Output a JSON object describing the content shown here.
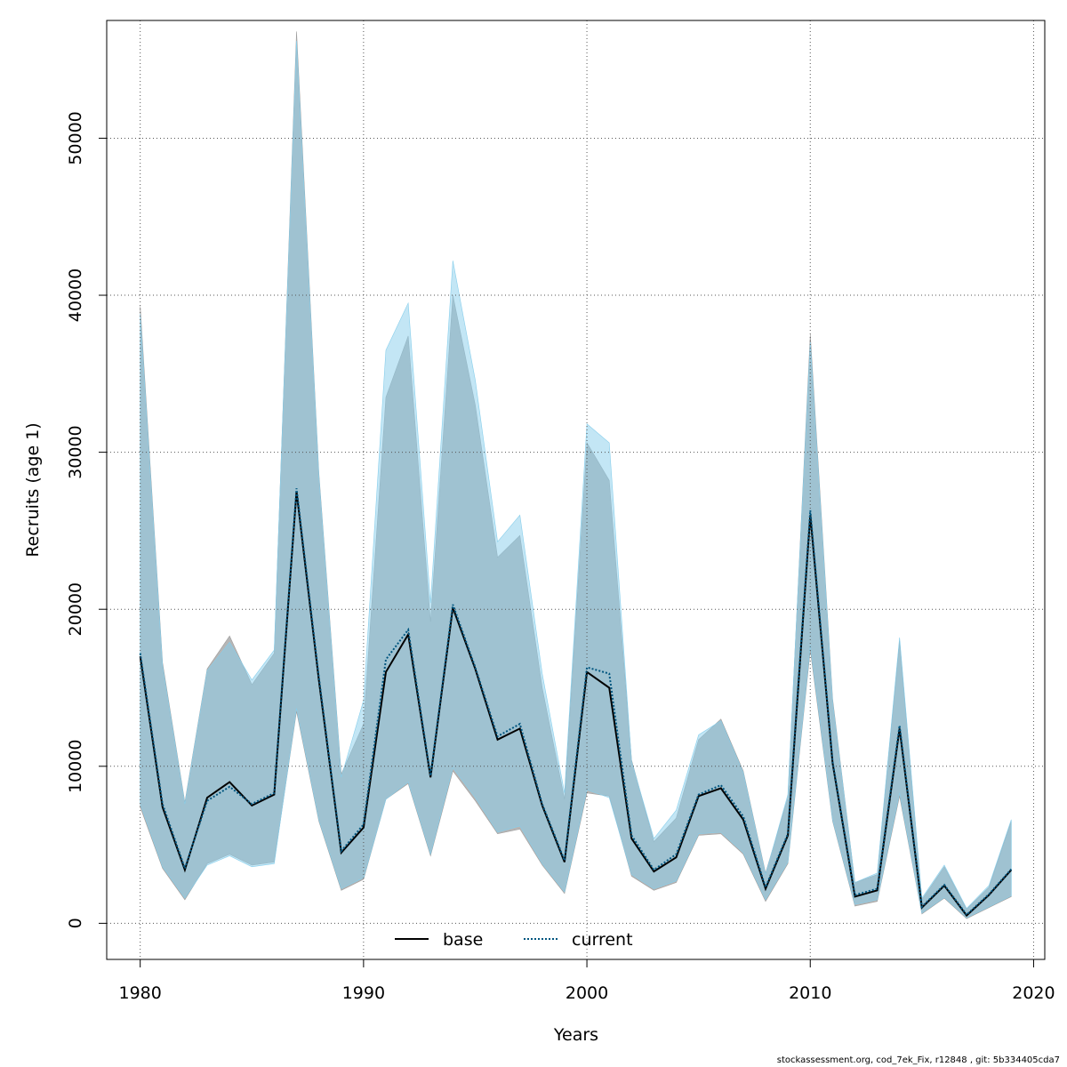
{
  "chart_data": {
    "type": "line",
    "xlabel": "Years",
    "ylabel": "Recruits (age 1)",
    "xlim": [
      1978.5,
      2020.5
    ],
    "ylim": [
      -2300,
      57500
    ],
    "x_ticks": [
      1980,
      1990,
      2000,
      2010,
      2020
    ],
    "y_ticks": [
      0,
      10000,
      20000,
      30000,
      40000,
      50000
    ],
    "grid": true,
    "legend_position": "bottom-center",
    "colors": {
      "base_band": "#9e9e9e",
      "current_band": "#87ceeb",
      "base_line": "#000000",
      "current_line": "#00557f"
    },
    "x": [
      1980,
      1981,
      1982,
      1983,
      1984,
      1985,
      1986,
      1987,
      1988,
      1989,
      1990,
      1991,
      1992,
      1993,
      1994,
      1995,
      1996,
      1997,
      1998,
      1999,
      2000,
      2001,
      2002,
      2003,
      2004,
      2005,
      2006,
      2007,
      2008,
      2009,
      2010,
      2011,
      2012,
      2013,
      2014,
      2015,
      2016,
      2017,
      2018,
      2019
    ],
    "series": [
      {
        "name": "base",
        "style": "solid",
        "values": [
          17000,
          7400,
          3400,
          8000,
          9000,
          7500,
          8200,
          27500,
          15500,
          4500,
          6100,
          16000,
          18400,
          9300,
          20100,
          16200,
          11700,
          12400,
          7500,
          3900,
          16000,
          15000,
          5400,
          3300,
          4200,
          8100,
          8600,
          6600,
          2200,
          5600,
          26000,
          10200,
          1700,
          2100,
          12400,
          1000,
          2400,
          500,
          1800,
          3400
        ],
        "lower": [
          7400,
          3500,
          1500,
          3800,
          4400,
          3700,
          3900,
          13500,
          6500,
          2100,
          2800,
          7900,
          8900,
          4300,
          9700,
          7800,
          5700,
          6000,
          3700,
          1900,
          8300,
          8100,
          3000,
          2100,
          2600,
          5600,
          5700,
          4400,
          1400,
          3800,
          17400,
          6500,
          1100,
          1400,
          8100,
          600,
          1600,
          300,
          1000,
          1700
        ],
        "upper": [
          39300,
          16600,
          7700,
          16200,
          18300,
          15200,
          17200,
          56800,
          28700,
          9500,
          12700,
          33500,
          37400,
          19200,
          40000,
          33000,
          23300,
          24700,
          15000,
          7900,
          30600,
          28200,
          10400,
          5200,
          6700,
          11700,
          13000,
          9700,
          3200,
          8000,
          37500,
          14300,
          2600,
          3100,
          18000,
          1500,
          3600,
          900,
          2300,
          6500
        ]
      },
      {
        "name": "current",
        "style": "dotted",
        "values": [
          17200,
          7600,
          3500,
          7800,
          8700,
          7600,
          8300,
          27700,
          15700,
          4600,
          6300,
          16800,
          18700,
          9400,
          20300,
          16300,
          11900,
          12700,
          7600,
          4000,
          16300,
          15900,
          5600,
          3400,
          4400,
          8200,
          8800,
          6800,
          2300,
          5700,
          26300,
          10300,
          1800,
          2200,
          12600,
          1050,
          2450,
          550,
          1850,
          3450
        ],
        "lower": [
          7600,
          3600,
          1600,
          3700,
          4300,
          3600,
          3800,
          13700,
          6600,
          2200,
          2900,
          7900,
          9000,
          4400,
          9900,
          8000,
          5800,
          6200,
          3800,
          2000,
          8500,
          8000,
          3100,
          2200,
          2700,
          5700,
          5800,
          4500,
          1500,
          3900,
          17700,
          6600,
          1200,
          1500,
          8300,
          650,
          1650,
          350,
          1050,
          1750
        ],
        "upper": [
          38800,
          16400,
          7600,
          16100,
          17900,
          15500,
          17400,
          56200,
          28500,
          9300,
          14200,
          36500,
          39500,
          20400,
          42200,
          34600,
          24300,
          26000,
          15900,
          8300,
          31800,
          30600,
          10300,
          5400,
          7200,
          12000,
          12900,
          9600,
          3100,
          8200,
          37000,
          14100,
          2600,
          3200,
          18200,
          1600,
          3700,
          950,
          2400,
          6600
        ]
      }
    ],
    "legend": {
      "base": "base",
      "current": "current"
    }
  },
  "footer": "stockassessment.org, cod_7ek_Fix, r12848 , git: 5b334405cda7"
}
